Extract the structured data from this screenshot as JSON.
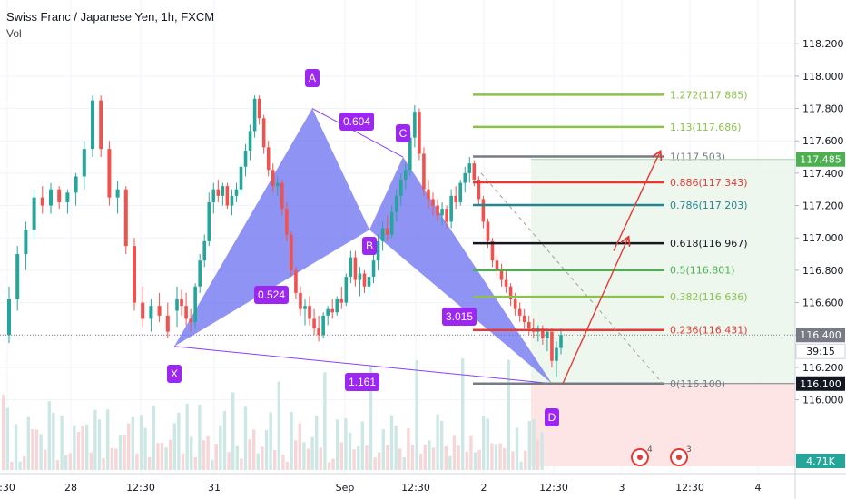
{
  "legend": {
    "title": "Swiss Franc / Japanese Yen, 1h, FXCM",
    "volume_label": "Vol"
  },
  "chart_data": {
    "type": "candlestick-with-harmonic-pattern",
    "y_axis": {
      "ticks": [
        "118.200",
        "118.000",
        "117.800",
        "117.600",
        "117.400",
        "117.200",
        "117.000",
        "116.800",
        "116.600",
        "116.400",
        "116.200",
        "116.000"
      ],
      "range": [
        115.88,
        118.33
      ]
    },
    "x_axis": {
      "ticks": [
        ":30",
        "28",
        "12:30",
        "31",
        "Sep",
        "12:30",
        "2",
        "12:30",
        "3",
        "12:30",
        "4"
      ]
    },
    "price_labels": [
      {
        "value": "117.485",
        "color": "#4CAF50"
      },
      {
        "value": "116.400",
        "color": "#787B86"
      },
      {
        "value": "39:15",
        "color": "#ffffff"
      },
      {
        "value": "116.100",
        "color": "#131722"
      },
      {
        "value": "4.71K",
        "color": "#26a69a"
      }
    ],
    "pattern_points": [
      {
        "label": "X",
        "price": 116.33
      },
      {
        "label": "A",
        "price": 117.8
      },
      {
        "label": "B",
        "price": 117.05
      },
      {
        "label": "C",
        "price": 117.5
      },
      {
        "label": "D",
        "price": 116.1
      }
    ],
    "pattern_ratios": [
      "0.604",
      "0.524",
      "3.015",
      "1.161"
    ],
    "fib_levels": [
      {
        "label": "1.272(117.885)",
        "price": 117.885,
        "color": "#8BC34A"
      },
      {
        "label": "1.13(117.686)",
        "price": 117.686,
        "color": "#8BC34A"
      },
      {
        "label": "1(117.503)",
        "price": 117.503,
        "color": "#787B86"
      },
      {
        "label": "0.886(117.343)",
        "price": 117.343,
        "color": "#E53935"
      },
      {
        "label": "0.786(117.203)",
        "price": 117.203,
        "color": "#26868F"
      },
      {
        "label": "0.618(116.967)",
        "price": 116.967,
        "color": "#131722"
      },
      {
        "label": "0.5(116.801)",
        "price": 116.801,
        "color": "#4CAF50"
      },
      {
        "label": "0.382(116.636)",
        "price": 116.636,
        "color": "#8BC34A"
      },
      {
        "label": "0.236(116.431)",
        "price": 116.431,
        "color": "#E53935"
      },
      {
        "label": "0(116.100)",
        "price": 116.1,
        "color": "#787B86"
      }
    ],
    "alerts": [
      {
        "count": "4"
      },
      {
        "count": "3"
      }
    ],
    "candles": [
      [
        116.55,
        116.7,
        116.45,
        116.62
      ],
      [
        116.62,
        116.68,
        116.52,
        116.58
      ],
      [
        116.58,
        116.66,
        116.46,
        116.5
      ],
      [
        116.5,
        116.56,
        116.42,
        116.48
      ],
      [
        116.48,
        116.72,
        116.44,
        116.7
      ],
      [
        116.7,
        116.9,
        116.66,
        116.86
      ],
      [
        116.86,
        117.02,
        116.82,
        116.98
      ],
      [
        116.98,
        117.28,
        116.95,
        117.22
      ],
      [
        117.22,
        117.34,
        117.15,
        117.3
      ],
      [
        117.3,
        117.36,
        117.22,
        117.26
      ],
      [
        117.26,
        117.34,
        117.2,
        117.32
      ],
      [
        117.32,
        117.34,
        117.18,
        117.2
      ],
      [
        117.2,
        117.3,
        117.14,
        117.26
      ],
      [
        117.26,
        117.34,
        117.22,
        117.3
      ],
      [
        117.3,
        117.46,
        117.26,
        117.44
      ],
      [
        117.44,
        117.58,
        117.38,
        117.54
      ],
      [
        117.54,
        117.7,
        117.48,
        117.66
      ],
      [
        117.66,
        117.88,
        117.62,
        117.86
      ],
      [
        117.86,
        117.88,
        117.7,
        117.74
      ],
      [
        117.74,
        117.76,
        117.52,
        117.56
      ],
      [
        117.56,
        117.6,
        117.38,
        117.42
      ],
      [
        117.42,
        117.46,
        117.28,
        117.32
      ],
      [
        117.32,
        117.38,
        117.26,
        117.34
      ],
      [
        117.34,
        117.36,
        117.14,
        117.18
      ],
      [
        117.18,
        117.22,
        116.98,
        117.02
      ],
      [
        117.02,
        117.04,
        116.76,
        116.8
      ],
      [
        116.8,
        116.82,
        116.62,
        116.66
      ],
      [
        116.66,
        116.7,
        116.52,
        116.56
      ],
      [
        116.56,
        116.62,
        116.46,
        116.58
      ],
      [
        116.58,
        116.64,
        116.46,
        116.5
      ],
      [
        116.5,
        116.56,
        116.4,
        116.44
      ],
      [
        116.44,
        116.52,
        116.36,
        116.4
      ],
      [
        116.4,
        116.54,
        116.38,
        116.52
      ],
      [
        116.52,
        116.58,
        116.46,
        116.56
      ],
      [
        116.56,
        116.62,
        116.5,
        116.54
      ],
      [
        116.54,
        116.64,
        116.52,
        116.62
      ],
      [
        116.62,
        116.7,
        116.56,
        116.6
      ],
      [
        116.6,
        116.78,
        116.58,
        116.76
      ],
      [
        116.76,
        116.92,
        116.72,
        116.88
      ],
      [
        116.88,
        116.92,
        116.7,
        116.74
      ],
      [
        116.74,
        116.82,
        116.64,
        116.78
      ],
      [
        116.78,
        116.8,
        116.66,
        116.7
      ],
      [
        116.7,
        116.78,
        116.64,
        116.76
      ],
      [
        116.76,
        116.9,
        116.72,
        116.86
      ],
      [
        116.86,
        117.02,
        116.8,
        116.98
      ],
      [
        116.98,
        117.1,
        116.92,
        117.06
      ],
      [
        117.06,
        117.14,
        116.98,
        117.02
      ],
      [
        117.02,
        117.2,
        117.0,
        117.16
      ],
      [
        117.16,
        117.3,
        117.1,
        117.26
      ],
      [
        117.26,
        117.4,
        117.2,
        117.36
      ],
      [
        117.36,
        117.46,
        117.3,
        117.42
      ],
      [
        117.42,
        117.66,
        117.38,
        117.62
      ],
      [
        117.62,
        117.82,
        117.56,
        117.78
      ],
      [
        117.78,
        117.8,
        117.48,
        117.52
      ],
      [
        117.52,
        117.56,
        117.26,
        117.3
      ],
      [
        117.3,
        117.36,
        117.18,
        117.24
      ],
      [
        117.24,
        117.28,
        117.14,
        117.2
      ],
      [
        117.2,
        117.24,
        117.1,
        117.14
      ],
      [
        117.14,
        117.22,
        117.08,
        117.18
      ],
      [
        117.18,
        117.2,
        117.06,
        117.1
      ],
      [
        117.1,
        117.3,
        117.06,
        117.26
      ],
      [
        117.26,
        117.32,
        117.18,
        117.22
      ],
      [
        117.22,
        117.36,
        117.2,
        117.34
      ],
      [
        117.34,
        117.44,
        117.28,
        117.4
      ],
      [
        117.4,
        117.5,
        117.34,
        117.46
      ],
      [
        117.46,
        117.48,
        117.32,
        117.36
      ],
      [
        117.36,
        117.38,
        117.2,
        117.24
      ],
      [
        117.24,
        117.26,
        117.06,
        117.1
      ],
      [
        117.1,
        117.12,
        116.94,
        116.98
      ],
      [
        116.98,
        117.0,
        116.82,
        116.86
      ],
      [
        116.86,
        116.9,
        116.76,
        116.8
      ],
      [
        116.8,
        116.84,
        116.7,
        116.74
      ],
      [
        116.74,
        116.8,
        116.66,
        116.7
      ],
      [
        116.7,
        116.72,
        116.58,
        116.62
      ],
      [
        116.62,
        116.66,
        116.52,
        116.56
      ],
      [
        116.56,
        116.6,
        116.48,
        116.52
      ],
      [
        116.52,
        116.56,
        116.44,
        116.48
      ],
      [
        116.48,
        116.52,
        116.4,
        116.44
      ],
      [
        116.44,
        116.5,
        116.38,
        116.42
      ],
      [
        116.42,
        116.46,
        116.36,
        116.44
      ],
      [
        116.44,
        116.46,
        116.34,
        116.38
      ],
      [
        116.38,
        116.44,
        116.3,
        116.42
      ],
      [
        116.42,
        116.44,
        116.2,
        116.24
      ],
      [
        116.24,
        116.36,
        116.14,
        116.32
      ],
      [
        116.32,
        116.44,
        116.28,
        116.4
      ]
    ]
  }
}
